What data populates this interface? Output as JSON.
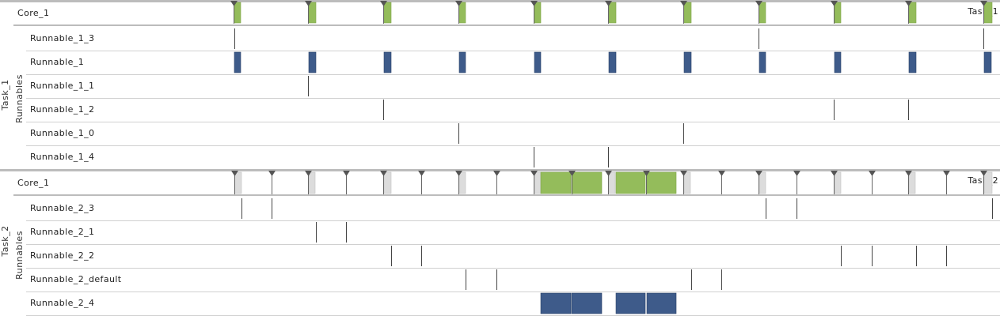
{
  "colors": {
    "running": "#94bc5b",
    "runnable_active": "#3e5b8a",
    "waiting": "#dcdcdc",
    "marker": "#555555",
    "separator": "#bcbcbc",
    "row_line": "#d0d0d0"
  },
  "panels": [
    {
      "id": "task1",
      "group_label": "Task_1",
      "sub_label": "Runnables",
      "core": {
        "label": "Core_1",
        "end_label": "Task_1",
        "markers": [
          295,
          389,
          484,
          579,
          674,
          768,
          863,
          958,
          1053,
          1147,
          1242
        ],
        "running": [
          [
            296,
            304
          ],
          [
            390,
            399
          ],
          [
            485,
            494
          ],
          [
            580,
            588
          ],
          [
            675,
            683
          ],
          [
            769,
            778
          ],
          [
            864,
            873
          ],
          [
            959,
            967
          ],
          [
            1054,
            1062
          ],
          [
            1148,
            1157
          ],
          [
            1243,
            1253
          ]
        ],
        "waiting": []
      },
      "runnables": [
        {
          "label": "Runnable_1_3",
          "ticks": [
            296,
            958,
            1242
          ],
          "bars": []
        },
        {
          "label": "Runnable_1",
          "ticks": [],
          "bars": [
            [
              296,
              304
            ],
            [
              390,
              399
            ],
            [
              485,
              494
            ],
            [
              580,
              588
            ],
            [
              675,
              683
            ],
            [
              769,
              778
            ],
            [
              864,
              873
            ],
            [
              959,
              967
            ],
            [
              1054,
              1062
            ],
            [
              1148,
              1157
            ],
            [
              1243,
              1252
            ]
          ]
        },
        {
          "label": "Runnable_1_1",
          "ticks": [
            389
          ],
          "bars": []
        },
        {
          "label": "Runnable_1_2",
          "ticks": [
            484,
            1053,
            1147
          ],
          "bars": []
        },
        {
          "label": "Runnable_1_0",
          "ticks": [
            579,
            863
          ],
          "bars": []
        },
        {
          "label": "Runnable_1_4",
          "ticks": [
            674,
            768
          ],
          "bars": []
        }
      ]
    },
    {
      "id": "task2",
      "group_label": "Task_2",
      "sub_label": "Runnables",
      "core": {
        "label": "Core_1",
        "end_label": "Task_2",
        "markers": [
          296,
          343,
          389,
          437,
          484,
          532,
          579,
          627,
          674,
          722,
          768,
          816,
          863,
          911,
          958,
          1006,
          1053,
          1101,
          1147,
          1195,
          1242
        ],
        "running": [
          [
            683,
            721
          ],
          [
            722,
            760
          ],
          [
            778,
            815
          ],
          [
            817,
            854
          ]
        ],
        "waiting": [
          [
            296,
            305
          ],
          [
            390,
            398
          ],
          [
            485,
            494
          ],
          [
            580,
            588
          ],
          [
            675,
            683
          ],
          [
            769,
            777
          ],
          [
            864,
            872
          ],
          [
            959,
            967
          ],
          [
            1054,
            1062
          ],
          [
            1148,
            1156
          ],
          [
            1243,
            1253
          ]
        ]
      },
      "runnables": [
        {
          "label": "Runnable_2_3",
          "ticks": [
            305,
            343,
            967,
            1006,
            1253
          ],
          "bars": []
        },
        {
          "label": "Runnable_2_1",
          "ticks": [
            399,
            437
          ],
          "bars": []
        },
        {
          "label": "Runnable_2_2",
          "ticks": [
            494,
            532,
            1062,
            1101,
            1157,
            1195
          ],
          "bars": []
        },
        {
          "label": "Runnable_2_default",
          "ticks": [
            588,
            627,
            873,
            911
          ],
          "bars": []
        },
        {
          "label": "Runnable_2_4",
          "ticks": [],
          "bars": [
            [
              683,
              721
            ],
            [
              722,
              760
            ],
            [
              778,
              815
            ],
            [
              817,
              854
            ]
          ]
        }
      ]
    }
  ]
}
